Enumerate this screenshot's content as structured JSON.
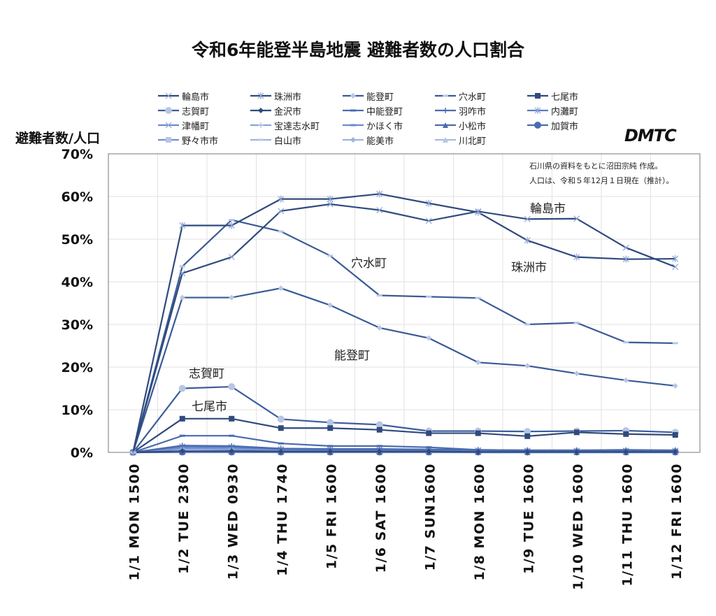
{
  "chart_data": {
    "type": "line",
    "title": "令和6年能登半島地震 避難者数の人口割合",
    "ylabel": "避難者数/人口",
    "xlabel": "",
    "ylim": [
      0,
      70
    ],
    "yticks": [
      "0%",
      "10%",
      "20%",
      "30%",
      "40%",
      "50%",
      "60%",
      "70%"
    ],
    "grid": true,
    "legend_position": "top",
    "categories": [
      "1/1 MON 1500",
      "1/2 TUE 2300",
      "1/3 WED 0930",
      "1/4 THU 1740",
      "1/5 FRI 1600",
      "1/6 SAT 1600",
      "1/7 SUN1600",
      "1/8 MON 1600",
      "1/9 TUE 1600",
      "1/10 WED 1600",
      "1/11 THU 1600",
      "1/12 FRI 1600"
    ],
    "series": [
      {
        "name": "輪島市",
        "marker": "x",
        "color": "#2f4a7d",
        "values": [
          0,
          42.0,
          45.8,
          56.6,
          58.2,
          56.8,
          54.3,
          56.5,
          54.7,
          54.8,
          48.0,
          43.5
        ]
      },
      {
        "name": "珠洲市",
        "marker": "asterisk",
        "color": "#2f4a7d",
        "values": [
          0,
          53.2,
          53.2,
          59.4,
          59.4,
          60.6,
          58.4,
          56.3,
          49.7,
          45.8,
          45.3,
          45.4
        ]
      },
      {
        "name": "能登町",
        "marker": "diamond-light",
        "color": "#3a5a96",
        "values": [
          0,
          36.3,
          36.3,
          38.5,
          34.5,
          29.2,
          26.8,
          21.1,
          20.3,
          18.5,
          16.9,
          15.6
        ]
      },
      {
        "name": "穴水町",
        "marker": "dash-light",
        "color": "#3a5a96",
        "values": [
          0,
          43.6,
          54.5,
          51.8,
          46.1,
          36.8,
          36.5,
          36.2,
          30.0,
          30.4,
          25.8,
          25.6
        ]
      },
      {
        "name": "七尾市",
        "marker": "square",
        "color": "#2f4a7d",
        "values": [
          0,
          7.9,
          7.9,
          5.7,
          5.7,
          5.3,
          4.5,
          4.5,
          3.8,
          4.7,
          4.3,
          4.1
        ]
      },
      {
        "name": "志賀町",
        "marker": "circle-light",
        "color": "#3d5c9c",
        "values": [
          0,
          15.0,
          15.4,
          7.8,
          7.0,
          6.5,
          5.0,
          5.0,
          4.9,
          5.0,
          5.1,
          4.7
        ]
      },
      {
        "name": "金沢市",
        "marker": "diamond",
        "color": "#2f4a7d",
        "values": [
          0,
          0.3,
          0.3,
          0.2,
          0.2,
          0.2,
          0.2,
          0.1,
          0.1,
          0.1,
          0.1,
          0.1
        ]
      },
      {
        "name": "中能登町",
        "marker": "dash",
        "color": "#4a6bb0",
        "values": [
          0,
          3.9,
          3.9,
          2.1,
          1.5,
          1.5,
          1.2,
          0.6,
          0.5,
          0.5,
          0.6,
          0.5
        ]
      },
      {
        "name": "羽咋市",
        "marker": "plus",
        "color": "#4a6bb0",
        "values": [
          0,
          1.6,
          1.5,
          0.9,
          0.8,
          0.8,
          0.7,
          0.6,
          0.5,
          0.5,
          0.5,
          0.5
        ]
      },
      {
        "name": "内灘町",
        "marker": "asterisk-light",
        "color": "#5b7cc0",
        "values": [
          0,
          1.4,
          1.3,
          0.8,
          0.7,
          0.7,
          0.6,
          0.5,
          0.4,
          0.4,
          0.4,
          0.4
        ]
      },
      {
        "name": "津幡町",
        "marker": "x-light",
        "color": "#6a8ad0",
        "values": [
          0,
          1.2,
          1.1,
          0.6,
          0.5,
          0.5,
          0.5,
          0.4,
          0.3,
          0.3,
          0.3,
          0.3
        ]
      },
      {
        "name": "宝達志水町",
        "marker": "plus-light",
        "color": "#8aa2d8",
        "values": [
          0,
          1.0,
          0.9,
          0.5,
          0.4,
          0.4,
          0.4,
          0.3,
          0.3,
          0.3,
          0.3,
          0.3
        ]
      },
      {
        "name": "かほく市",
        "marker": "dash",
        "color": "#6a8ad0",
        "values": [
          0,
          0.8,
          0.7,
          0.4,
          0.3,
          0.3,
          0.3,
          0.2,
          0.2,
          0.2,
          0.2,
          0.2
        ]
      },
      {
        "name": "小松市",
        "marker": "triangle",
        "color": "#4a6bb0",
        "values": [
          0,
          0.1,
          0.1,
          0.1,
          0.1,
          0.1,
          0.1,
          0.1,
          0.1,
          0.1,
          0.1,
          0.1
        ]
      },
      {
        "name": "加賀市",
        "marker": "circle",
        "color": "#4a6bb0",
        "values": [
          0,
          0.1,
          0.1,
          0.1,
          0.1,
          0.1,
          0.1,
          0.1,
          0.1,
          0.1,
          0.1,
          0.1
        ]
      },
      {
        "name": "野々市市",
        "marker": "square-light",
        "color": "#7090d0",
        "values": [
          0,
          0.1,
          0.1,
          0.1,
          0.1,
          0.1,
          0.1,
          0.0,
          0.0,
          0.0,
          0.0,
          0.0
        ]
      },
      {
        "name": "白山市",
        "marker": "dash-light",
        "color": "#9fb3e0",
        "values": [
          0,
          0.1,
          0.1,
          0.1,
          0.1,
          0.1,
          0.1,
          0.0,
          0.0,
          0.0,
          0.0,
          0.0
        ]
      },
      {
        "name": "能美市",
        "marker": "diamond",
        "color": "#9fb3e0",
        "values": [
          0,
          0.1,
          0.1,
          0.0,
          0.0,
          0.0,
          0.0,
          0.0,
          0.0,
          0.0,
          0.0,
          0.0
        ]
      },
      {
        "name": "川北町",
        "marker": "triangle-light",
        "color": "#a9bbe2",
        "values": [
          0,
          0.0,
          0.0,
          0.0,
          0.0,
          0.0,
          0.0,
          0.0,
          0.0,
          0.0,
          0.0,
          0.0
        ]
      }
    ],
    "annotations": [
      {
        "text": "輪島市",
        "series": "輪島市"
      },
      {
        "text": "珠洲市",
        "series": "珠洲市"
      },
      {
        "text": "穴水町",
        "series": "穴水町"
      },
      {
        "text": "能登町",
        "series": "能登町"
      },
      {
        "text": "志賀町",
        "series": "志賀町"
      },
      {
        "text": "七尾市",
        "series": "七尾市"
      }
    ],
    "notes": [
      "石川県の資料をもとに沼田宗純 作成。",
      "人口は、令和５年12月１日現在（推計）。"
    ]
  },
  "logo": "DMTC"
}
